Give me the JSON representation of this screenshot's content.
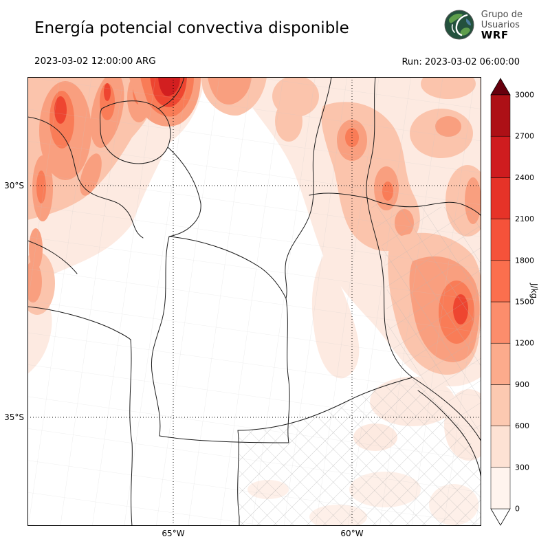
{
  "header": {
    "title": "Energía potencial convectiva disponible",
    "valid_time": "2023-03-02 12:00:00 ARG",
    "run_label": "Run: 2023-03-02 06:00:00",
    "logo": {
      "line1": "Grupo de",
      "line2": "Usuarios",
      "line3": "WRF"
    }
  },
  "chart_data": {
    "type": "filled_contour_map",
    "title": "Energía potencial convectiva disponible",
    "variable": "CAPE (convective available potential energy)",
    "units": "J/kg",
    "valid_time": "2023-03-02 12:00:00 ARG",
    "run_time": "2023-03-02 06:00:00",
    "region": "central and northern Argentina with province and department boundaries",
    "x_axis": {
      "ticks": [
        "65°W",
        "60°W"
      ]
    },
    "y_axis": {
      "ticks": [
        "30°S",
        "35°S"
      ]
    },
    "grid": "dotted graticule at labeled parallels and meridians",
    "colorbar": {
      "units": "J/kg",
      "ticks": [
        0,
        300,
        600,
        900,
        1200,
        1500,
        1800,
        2100,
        2400,
        2700,
        3000
      ],
      "segment_colors": [
        "#fff4ee",
        "#fde2d4",
        "#fcc9b1",
        "#fcab8c",
        "#fc8d6c",
        "#fb6f4e",
        "#f5523a",
        "#e63328",
        "#cf1c1f",
        "#ad1016"
      ],
      "under_color": "#ffffff",
      "over_color": "#67000d",
      "extend": "both"
    },
    "field_summary": [
      {
        "region": "northwest mountains (Salta / Tucumán / Catamarca)",
        "cape_range_jkg": "600-1800"
      },
      {
        "region": "top edge near 64.5°W north of Tucumán",
        "cape_range_jkg": "1800-2400 (local maximum)"
      },
      {
        "region": "northeast (Santiago del Estero / Chaco / Corrientes)",
        "cape_range_jkg": "300-1200"
      },
      {
        "region": "east (Entre Ríos, near Uruguay river)",
        "cape_range_jkg": "900-1800"
      },
      {
        "region": "center and southwest (Córdoba / San Luis / La Pampa)",
        "cape_range_jkg": "0-300"
      }
    ]
  }
}
